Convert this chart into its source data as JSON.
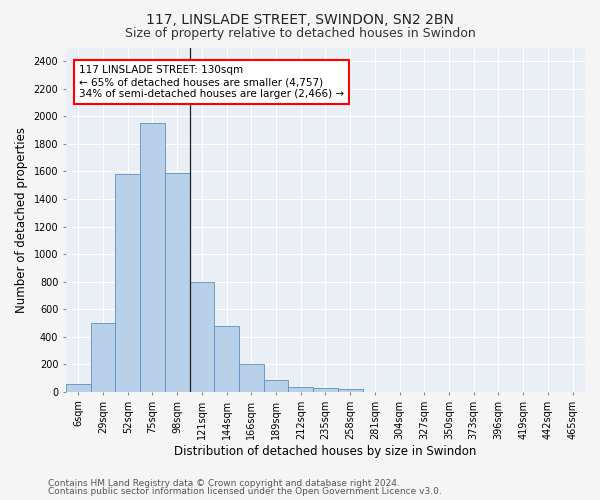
{
  "title1": "117, LINSLADE STREET, SWINDON, SN2 2BN",
  "title2": "Size of property relative to detached houses in Swindon",
  "xlabel": "Distribution of detached houses by size in Swindon",
  "ylabel": "Number of detached properties",
  "footer1": "Contains HM Land Registry data © Crown copyright and database right 2024.",
  "footer2": "Contains public sector information licensed under the Open Government Licence v3.0.",
  "categories": [
    "6sqm",
    "29sqm",
    "52sqm",
    "75sqm",
    "98sqm",
    "121sqm",
    "144sqm",
    "166sqm",
    "189sqm",
    "212sqm",
    "235sqm",
    "258sqm",
    "281sqm",
    "304sqm",
    "327sqm",
    "350sqm",
    "373sqm",
    "396sqm",
    "419sqm",
    "442sqm",
    "465sqm"
  ],
  "values": [
    60,
    500,
    1580,
    1950,
    1590,
    800,
    480,
    200,
    90,
    35,
    30,
    20,
    0,
    0,
    0,
    0,
    0,
    0,
    0,
    0,
    0
  ],
  "bar_color": "#b8d0e8",
  "bar_edge_color": "#5a90c0",
  "annotation_text": "117 LINSLADE STREET: 130sqm\n← 65% of detached houses are smaller (4,757)\n34% of semi-detached houses are larger (2,466) →",
  "vline_x": 4.5,
  "ylim": [
    0,
    2500
  ],
  "yticks": [
    0,
    200,
    400,
    600,
    800,
    1000,
    1200,
    1400,
    1600,
    1800,
    2000,
    2200,
    2400
  ],
  "bg_color": "#f5f5f5",
  "plot_bg_color": "#eaeef5",
  "grid_color": "#ffffff",
  "title_fontsize": 10,
  "subtitle_fontsize": 9,
  "axis_label_fontsize": 8.5,
  "tick_fontsize": 7,
  "annotation_fontsize": 7.5,
  "footer_fontsize": 6.5
}
